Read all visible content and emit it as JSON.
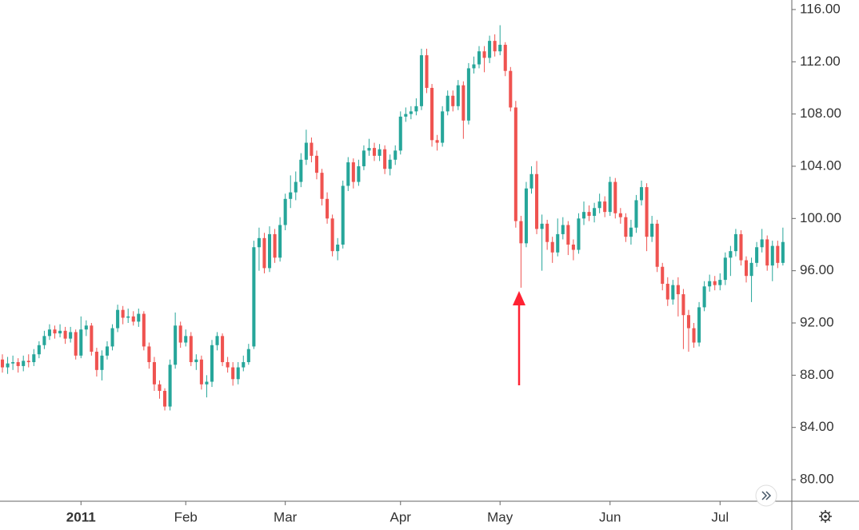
{
  "chart_data": {
    "type": "candlestick",
    "ylim": [
      78.35,
      116.73
    ],
    "yticks": [
      {
        "value": 80,
        "label": "80.00"
      },
      {
        "value": 84,
        "label": "84.00"
      },
      {
        "value": 88,
        "label": "88.00"
      },
      {
        "value": 92,
        "label": "92.00"
      },
      {
        "value": 96,
        "label": "96.00"
      },
      {
        "value": 100,
        "label": "100.00"
      },
      {
        "value": 104,
        "label": "104.00"
      },
      {
        "value": 108,
        "label": "108.00"
      },
      {
        "value": 112,
        "label": "112.00"
      },
      {
        "value": 116,
        "label": "116.00"
      }
    ],
    "xlim": [
      -0.46,
      150.7
    ],
    "xticks": [
      {
        "value": 15,
        "label": "2011"
      },
      {
        "value": 35,
        "label": "Feb"
      },
      {
        "value": 54,
        "label": "Mar"
      },
      {
        "value": 76,
        "label": "Apr"
      },
      {
        "value": 95,
        "label": "May"
      },
      {
        "value": 116,
        "label": "Jun"
      },
      {
        "value": 137,
        "label": "Jul"
      }
    ],
    "up_color": "#26a69a",
    "down_color": "#ef5350",
    "ohlc": [
      [
        89.2,
        89.6,
        88.2,
        88.6
      ],
      [
        88.6,
        89.4,
        88.1,
        88.9
      ],
      [
        88.9,
        89.5,
        88.4,
        89.0
      ],
      [
        89.0,
        89.3,
        88.2,
        88.7
      ],
      [
        88.7,
        89.5,
        88.3,
        89.1
      ],
      [
        89.1,
        89.6,
        88.6,
        89.0
      ],
      [
        89.0,
        90.0,
        88.7,
        89.6
      ],
      [
        89.6,
        90.6,
        89.3,
        90.3
      ],
      [
        90.3,
        91.4,
        90.0,
        91.0
      ],
      [
        91.0,
        91.9,
        90.7,
        91.5
      ],
      [
        91.5,
        91.8,
        90.8,
        91.2
      ],
      [
        91.2,
        91.9,
        90.9,
        91.4
      ],
      [
        91.4,
        91.7,
        90.4,
        90.8
      ],
      [
        90.8,
        91.7,
        90.5,
        91.3
      ],
      [
        91.3,
        91.5,
        89.2,
        89.5
      ],
      [
        89.5,
        92.5,
        89.3,
        91.5
      ],
      [
        91.5,
        92.2,
        91.0,
        91.8
      ],
      [
        91.8,
        92.0,
        89.5,
        89.8
      ],
      [
        89.8,
        90.1,
        87.9,
        88.4
      ],
      [
        88.4,
        89.9,
        87.6,
        89.5
      ],
      [
        89.5,
        90.6,
        89.2,
        90.2
      ],
      [
        90.2,
        91.9,
        89.9,
        91.6
      ],
      [
        91.6,
        93.4,
        91.3,
        93.0
      ],
      [
        93.0,
        93.3,
        91.9,
        92.4
      ],
      [
        92.4,
        93.1,
        92.0,
        92.5
      ],
      [
        92.5,
        92.9,
        91.8,
        92.1
      ],
      [
        92.1,
        93.1,
        91.7,
        92.7
      ],
      [
        92.7,
        92.9,
        89.9,
        90.2
      ],
      [
        90.2,
        90.5,
        88.5,
        89.0
      ],
      [
        89.0,
        89.4,
        86.8,
        87.3
      ],
      [
        87.3,
        87.6,
        86.2,
        86.8
      ],
      [
        86.8,
        87.0,
        85.3,
        85.6
      ],
      [
        85.6,
        89.2,
        85.3,
        88.8
      ],
      [
        88.8,
        92.8,
        88.5,
        91.8
      ],
      [
        91.8,
        92.1,
        90.1,
        90.5
      ],
      [
        90.5,
        91.5,
        90.2,
        91.0
      ],
      [
        91.0,
        91.3,
        88.7,
        89.0
      ],
      [
        89.0,
        89.6,
        88.4,
        89.2
      ],
      [
        89.2,
        89.5,
        86.9,
        87.3
      ],
      [
        87.3,
        88.0,
        86.3,
        87.5
      ],
      [
        87.5,
        90.7,
        87.1,
        90.3
      ],
      [
        90.3,
        91.3,
        89.9,
        91.0
      ],
      [
        91.0,
        91.2,
        88.7,
        89.0
      ],
      [
        89.0,
        89.4,
        88.2,
        88.6
      ],
      [
        88.6,
        89.0,
        87.2,
        87.7
      ],
      [
        87.7,
        89.0,
        87.3,
        88.6
      ],
      [
        88.6,
        89.5,
        88.3,
        89.0
      ],
      [
        89.0,
        90.4,
        88.8,
        90.0
      ],
      [
        90.2,
        98.3,
        90.0,
        97.8
      ],
      [
        97.8,
        99.3,
        96.0,
        98.5
      ],
      [
        98.5,
        98.9,
        95.8,
        96.2
      ],
      [
        96.2,
        99.4,
        95.9,
        98.8
      ],
      [
        98.8,
        99.2,
        96.6,
        97.0
      ],
      [
        97.0,
        100.1,
        96.7,
        99.5
      ],
      [
        99.5,
        101.9,
        99.1,
        101.5
      ],
      [
        101.5,
        103.3,
        100.8,
        102.0
      ],
      [
        102.0,
        103.6,
        101.4,
        102.8
      ],
      [
        102.8,
        105.0,
        102.4,
        104.5
      ],
      [
        104.5,
        106.8,
        104.1,
        105.8
      ],
      [
        105.8,
        106.2,
        104.3,
        104.8
      ],
      [
        104.8,
        105.2,
        103.0,
        103.5
      ],
      [
        103.5,
        103.8,
        101.0,
        101.5
      ],
      [
        101.5,
        102.0,
        99.6,
        100.0
      ],
      [
        100.0,
        100.3,
        97.1,
        97.5
      ],
      [
        97.5,
        98.5,
        96.8,
        98.0
      ],
      [
        98.0,
        102.9,
        97.7,
        102.5
      ],
      [
        102.5,
        104.7,
        102.1,
        104.3
      ],
      [
        104.3,
        104.6,
        102.3,
        102.8
      ],
      [
        102.8,
        104.5,
        102.5,
        104.0
      ],
      [
        104.0,
        105.6,
        103.7,
        105.2
      ],
      [
        105.2,
        106.1,
        104.8,
        105.4
      ],
      [
        105.4,
        105.8,
        104.4,
        104.8
      ],
      [
        104.8,
        105.7,
        104.4,
        105.3
      ],
      [
        105.3,
        105.6,
        103.4,
        103.8
      ],
      [
        103.8,
        104.9,
        103.3,
        104.5
      ],
      [
        104.5,
        105.6,
        104.1,
        105.2
      ],
      [
        105.2,
        108.2,
        104.9,
        107.8
      ],
      [
        107.8,
        108.5,
        107.4,
        108.0
      ],
      [
        108.0,
        108.6,
        107.6,
        108.2
      ],
      [
        108.2,
        109.2,
        107.9,
        108.6
      ],
      [
        108.6,
        113.0,
        108.3,
        112.5
      ],
      [
        112.5,
        113.0,
        109.6,
        110.0
      ],
      [
        110.0,
        110.3,
        105.5,
        106.0
      ],
      [
        106.0,
        106.4,
        105.2,
        105.8
      ],
      [
        105.8,
        108.6,
        105.5,
        108.2
      ],
      [
        108.2,
        109.8,
        107.9,
        109.4
      ],
      [
        109.4,
        109.8,
        108.2,
        108.6
      ],
      [
        108.6,
        110.6,
        108.3,
        110.2
      ],
      [
        110.2,
        110.5,
        106.1,
        107.5
      ],
      [
        107.5,
        111.9,
        107.2,
        111.5
      ],
      [
        111.5,
        112.4,
        111.1,
        111.8
      ],
      [
        111.8,
        113.2,
        111.5,
        112.8
      ],
      [
        112.8,
        113.2,
        111.2,
        112.3
      ],
      [
        112.3,
        114.0,
        111.9,
        113.6
      ],
      [
        113.6,
        114.1,
        112.4,
        112.8
      ],
      [
        112.8,
        114.8,
        112.5,
        113.3
      ],
      [
        113.3,
        113.5,
        110.9,
        111.3
      ],
      [
        111.3,
        111.6,
        108.2,
        108.5
      ],
      [
        108.5,
        109.0,
        99.3,
        99.8
      ],
      [
        99.8,
        100.2,
        94.7,
        98.1
      ],
      [
        98.1,
        102.8,
        97.8,
        102.3
      ],
      [
        102.3,
        104.0,
        101.9,
        103.4
      ],
      [
        103.4,
        104.4,
        98.8,
        99.2
      ],
      [
        99.2,
        100.3,
        96.0,
        99.6
      ],
      [
        99.6,
        99.9,
        97.6,
        98.2
      ],
      [
        98.2,
        98.6,
        96.6,
        97.4
      ],
      [
        97.4,
        100.0,
        97.1,
        98.8
      ],
      [
        98.8,
        100.1,
        98.4,
        99.5
      ],
      [
        99.5,
        99.8,
        97.2,
        98.0
      ],
      [
        98.0,
        98.4,
        96.8,
        97.6
      ],
      [
        97.6,
        100.4,
        97.3,
        100.0
      ],
      [
        100.0,
        101.3,
        99.5,
        100.5
      ],
      [
        100.5,
        101.0,
        99.8,
        100.2
      ],
      [
        100.2,
        101.2,
        99.7,
        100.8
      ],
      [
        100.8,
        101.9,
        100.4,
        101.3
      ],
      [
        101.3,
        101.7,
        100.1,
        100.5
      ],
      [
        100.5,
        103.2,
        100.2,
        102.8
      ],
      [
        102.8,
        103.1,
        100.0,
        100.4
      ],
      [
        100.4,
        100.8,
        99.6,
        100.1
      ],
      [
        100.1,
        100.4,
        98.2,
        98.6
      ],
      [
        98.6,
        99.9,
        98.0,
        99.3
      ],
      [
        99.3,
        101.8,
        98.9,
        101.4
      ],
      [
        101.4,
        102.9,
        101.0,
        102.4
      ],
      [
        102.4,
        102.7,
        97.5,
        98.6
      ],
      [
        98.6,
        100.2,
        98.2,
        99.6
      ],
      [
        99.6,
        99.9,
        95.9,
        96.3
      ],
      [
        96.3,
        96.6,
        94.5,
        95.0
      ],
      [
        95.0,
        95.5,
        93.3,
        93.8
      ],
      [
        93.8,
        95.3,
        93.4,
        94.9
      ],
      [
        94.9,
        95.5,
        92.5,
        94.2
      ],
      [
        94.2,
        94.6,
        90.0,
        92.6
      ],
      [
        92.6,
        93.0,
        89.8,
        91.6
      ],
      [
        91.6,
        92.0,
        90.1,
        90.5
      ],
      [
        90.5,
        93.6,
        90.2,
        93.2
      ],
      [
        93.2,
        95.2,
        92.9,
        94.8
      ],
      [
        94.8,
        95.7,
        94.4,
        95.2
      ],
      [
        95.2,
        95.6,
        94.5,
        94.9
      ],
      [
        94.9,
        95.8,
        94.5,
        95.3
      ],
      [
        95.3,
        97.4,
        94.9,
        97.0
      ],
      [
        97.0,
        97.9,
        95.6,
        97.5
      ],
      [
        97.5,
        99.2,
        97.1,
        98.8
      ],
      [
        98.8,
        99.1,
        96.4,
        96.8
      ],
      [
        96.8,
        97.1,
        95.1,
        95.6
      ],
      [
        95.6,
        97.0,
        93.6,
        96.6
      ],
      [
        96.6,
        98.2,
        96.3,
        97.8
      ],
      [
        97.8,
        99.2,
        97.4,
        98.4
      ],
      [
        98.4,
        98.7,
        96.0,
        96.4
      ],
      [
        96.4,
        98.3,
        95.2,
        97.9
      ],
      [
        97.9,
        98.3,
        96.2,
        96.6
      ],
      [
        96.6,
        99.3,
        96.4,
        98.2
      ]
    ]
  }
}
